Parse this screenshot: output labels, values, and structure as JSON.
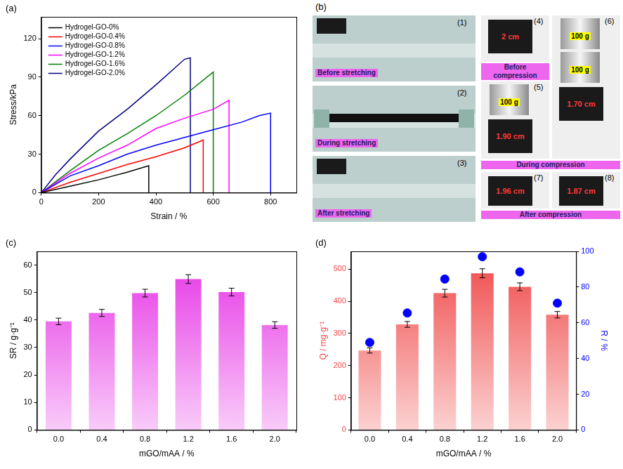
{
  "chart_data": [
    {
      "panel_label": "(a)",
      "type": "line",
      "x_label": "Strain / %",
      "y_label": "Stress/kPa",
      "xlim": [
        0,
        890
      ],
      "xticks": [
        0,
        200,
        400,
        600,
        800
      ],
      "ylim": [
        0,
        137
      ],
      "yticks": [
        0,
        30,
        60,
        90,
        120
      ],
      "grid": false,
      "legend": "upper left",
      "series": [
        {
          "name": "Hydrogel-GO-0%",
          "color": "#000000",
          "x": [
            0,
            100,
            200,
            250,
            300,
            375,
            375
          ],
          "values": [
            0,
            5,
            10,
            13,
            16,
            21,
            0
          ]
        },
        {
          "name": "Hydrogel-GO-0.4%",
          "color": "#ff0000",
          "x": [
            0,
            100,
            200,
            300,
            400,
            500,
            565,
            565
          ],
          "values": [
            0,
            8,
            15,
            22,
            28,
            35,
            41,
            0
          ]
        },
        {
          "name": "Hydrogel-GO-0.8%",
          "color": "#0000ff",
          "x": [
            0,
            100,
            200,
            300,
            400,
            500,
            600,
            700,
            760,
            800,
            800
          ],
          "values": [
            0,
            13,
            21,
            30,
            37,
            43,
            49,
            55,
            60,
            62,
            0
          ]
        },
        {
          "name": "Hydrogel-GO-1.2%",
          "color": "#ff00ff",
          "x": [
            0,
            100,
            200,
            300,
            400,
            500,
            600,
            655,
            655
          ],
          "values": [
            0,
            15,
            27,
            37,
            50,
            58,
            65,
            72,
            0
          ]
        },
        {
          "name": "Hydrogel-GO-1.6%",
          "color": "#008000",
          "x": [
            0,
            100,
            200,
            300,
            400,
            500,
            600,
            600
          ],
          "values": [
            0,
            17,
            33,
            46,
            60,
            76,
            94,
            0
          ]
        },
        {
          "name": "Hydrogel-GO-2.0%",
          "color": "#000080",
          "x": [
            0,
            50,
            100,
            200,
            300,
            400,
            500,
            520,
            520
          ],
          "values": [
            0,
            14,
            26,
            48,
            65,
            84,
            104,
            105,
            0
          ]
        }
      ]
    },
    {
      "panel_label": "(c)",
      "type": "bar",
      "x_label": "mGO/mAA / %",
      "y_label": "SR / g·g⁻¹",
      "categories": [
        "0.0",
        "0.4",
        "0.8",
        "1.2",
        "1.6",
        "2.0"
      ],
      "values": [
        39.5,
        42.6,
        49.8,
        54.9,
        50.2,
        38.2
      ],
      "errors": [
        1.2,
        1.3,
        1.4,
        1.6,
        1.4,
        1.2
      ],
      "color": "#e632e6",
      "ylim": [
        0,
        65
      ],
      "yticks": [
        0,
        10,
        20,
        30,
        40,
        50,
        60
      ],
      "grid": false
    },
    {
      "panel_label": "(d)",
      "type": "bar",
      "x_label": "mGO/mAA / %",
      "y_label": "Q / mg·g⁻¹",
      "y2_label": "R / %",
      "categories": [
        "0.0",
        "0.4",
        "0.8",
        "1.2",
        "1.6",
        "2.0"
      ],
      "series": [
        {
          "type": "bar",
          "color": "#f04848",
          "values": [
            247,
            328,
            425,
            487,
            445,
            358
          ],
          "errors": [
            8,
            9,
            12,
            14,
            12,
            10
          ]
        },
        {
          "type": "scatter",
          "axis": "y2",
          "color": "#0000ff",
          "marker": "circle",
          "values": [
            49,
            65.5,
            84.5,
            97,
            88.5,
            71
          ]
        }
      ],
      "ylim": [
        0,
        555
      ],
      "yticks": [
        0,
        100,
        200,
        300,
        400,
        500
      ],
      "y2lim": [
        0,
        100
      ],
      "y2ticks": [
        0,
        20,
        40,
        60,
        80,
        100
      ],
      "grid": false
    }
  ],
  "panel_b": {
    "panel_label": "(b)",
    "stretching": [
      {
        "number": "(1)",
        "caption": "Before stretching"
      },
      {
        "number": "(2)",
        "caption": "During stretching"
      },
      {
        "number": "(3)",
        "caption": "After stretching"
      }
    ],
    "compression": {
      "before": {
        "caption": "Before compression",
        "photos": [
          {
            "number": "(4)",
            "height": "2 cm"
          }
        ]
      },
      "during": {
        "caption": "During compression",
        "photos": [
          {
            "number": "(5)",
            "weights": [
              "100 g"
            ],
            "height": "1.90 cm"
          },
          {
            "number": "(6)",
            "weights": [
              "100 g",
              "100 g"
            ],
            "height": "1.70 cm"
          }
        ]
      },
      "after": {
        "caption": "After compression",
        "photos": [
          {
            "number": "(7)",
            "height": "1.96 cm"
          },
          {
            "number": "(8)",
            "height": "1.87 cm"
          }
        ]
      }
    }
  }
}
